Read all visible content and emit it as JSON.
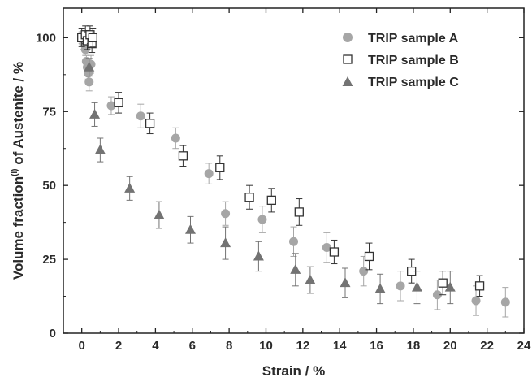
{
  "chart_data": {
    "type": "scatter",
    "xlabel": "Strain / %",
    "ylabel": {
      "prefix": "Volume fraction",
      "superscript": "(I)",
      "suffix": " of Austenite / %"
    },
    "xlim": [
      -1,
      24
    ],
    "ylim": [
      0,
      110
    ],
    "xticks": [
      "0",
      "2",
      "4",
      "6",
      "8",
      "10",
      "12",
      "14",
      "16",
      "18",
      "20",
      "22",
      "24"
    ],
    "yticks": [
      "0",
      "25",
      "50",
      "75",
      "100"
    ],
    "grid": false,
    "legend_position": "top-right",
    "series": [
      {
        "name": "TRIP sample A",
        "marker": "circle",
        "color": "#a6a6a6",
        "points": [
          {
            "x": 0.0,
            "y": 100,
            "err": 2
          },
          {
            "x": 0.1,
            "y": 98,
            "err": 2
          },
          {
            "x": 0.2,
            "y": 96,
            "err": 2
          },
          {
            "x": 0.25,
            "y": 92,
            "err": 2
          },
          {
            "x": 0.3,
            "y": 90,
            "err": 2
          },
          {
            "x": 0.35,
            "y": 88,
            "err": 2
          },
          {
            "x": 0.4,
            "y": 85,
            "err": 3
          },
          {
            "x": 0.5,
            "y": 91,
            "err": 3
          },
          {
            "x": 1.6,
            "y": 77,
            "err": 3
          },
          {
            "x": 3.2,
            "y": 73.5,
            "err": 4
          },
          {
            "x": 5.1,
            "y": 66,
            "err": 3.5
          },
          {
            "x": 6.9,
            "y": 54,
            "err": 3.5
          },
          {
            "x": 7.8,
            "y": 40.5,
            "err": 4
          },
          {
            "x": 9.8,
            "y": 38.5,
            "err": 4.5
          },
          {
            "x": 11.5,
            "y": 31,
            "err": 5
          },
          {
            "x": 13.3,
            "y": 29,
            "err": 5
          },
          {
            "x": 15.3,
            "y": 21,
            "err": 5
          },
          {
            "x": 17.3,
            "y": 16,
            "err": 5
          },
          {
            "x": 19.3,
            "y": 13,
            "err": 5
          },
          {
            "x": 21.4,
            "y": 11,
            "err": 5
          },
          {
            "x": 23.0,
            "y": 10.5,
            "err": 5
          }
        ]
      },
      {
        "name": "TRIP sample B",
        "marker": "square-open",
        "color": "#333333",
        "points": [
          {
            "x": 0.0,
            "y": 100,
            "err": 3
          },
          {
            "x": 0.2,
            "y": 101,
            "err": 3
          },
          {
            "x": 0.3,
            "y": 99,
            "err": 3
          },
          {
            "x": 0.45,
            "y": 101,
            "err": 3
          },
          {
            "x": 0.55,
            "y": 98,
            "err": 3
          },
          {
            "x": 0.6,
            "y": 100,
            "err": 3
          },
          {
            "x": 2.0,
            "y": 78,
            "err": 3.5
          },
          {
            "x": 3.7,
            "y": 71,
            "err": 3.5
          },
          {
            "x": 5.5,
            "y": 60,
            "err": 3.5
          },
          {
            "x": 7.5,
            "y": 56,
            "err": 4
          },
          {
            "x": 9.1,
            "y": 46,
            "err": 4
          },
          {
            "x": 10.3,
            "y": 45,
            "err": 4
          },
          {
            "x": 11.8,
            "y": 41,
            "err": 4.5
          },
          {
            "x": 13.7,
            "y": 27.5,
            "err": 4
          },
          {
            "x": 15.6,
            "y": 26,
            "err": 4.5
          },
          {
            "x": 17.9,
            "y": 21,
            "err": 4
          },
          {
            "x": 19.6,
            "y": 17,
            "err": 4
          },
          {
            "x": 21.6,
            "y": 16,
            "err": 3.5
          }
        ]
      },
      {
        "name": "TRIP sample C",
        "marker": "triangle",
        "color": "#737373",
        "points": [
          {
            "x": 0.4,
            "y": 90,
            "err": 3
          },
          {
            "x": 0.7,
            "y": 74,
            "err": 4
          },
          {
            "x": 1.0,
            "y": 62,
            "err": 4
          },
          {
            "x": 2.6,
            "y": 49,
            "err": 4
          },
          {
            "x": 4.2,
            "y": 40,
            "err": 4.5
          },
          {
            "x": 5.9,
            "y": 35,
            "err": 4.5
          },
          {
            "x": 7.8,
            "y": 30.5,
            "err": 5.5
          },
          {
            "x": 9.6,
            "y": 26,
            "err": 5
          },
          {
            "x": 11.6,
            "y": 21.5,
            "err": 5.5
          },
          {
            "x": 12.4,
            "y": 18,
            "err": 4.5
          },
          {
            "x": 14.3,
            "y": 17,
            "err": 5
          },
          {
            "x": 16.2,
            "y": 15,
            "err": 5
          },
          {
            "x": 18.2,
            "y": 15.5,
            "err": 5.5
          },
          {
            "x": 20.0,
            "y": 15.5,
            "err": 5.5
          }
        ]
      }
    ]
  }
}
